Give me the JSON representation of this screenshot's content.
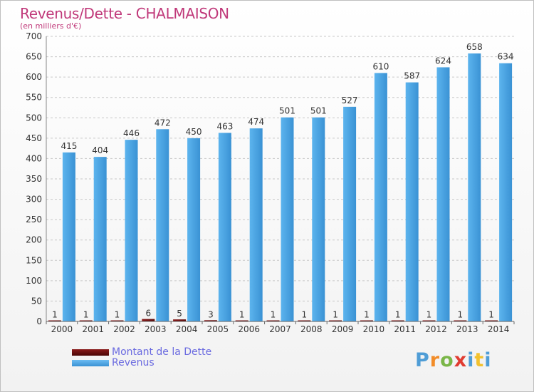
{
  "title": "Revenus/Dette - CHALMAISON",
  "subtitle": "(en milliers d'€)",
  "logo": {
    "text": "Proxiti",
    "letter_colors": [
      "#4f9dd6",
      "#f28c28",
      "#7ab648",
      "#e03c31",
      "#4f9dd6",
      "#f2c12e",
      "#4f9dd6"
    ]
  },
  "chart_data": {
    "type": "bar",
    "categories": [
      "2000",
      "2001",
      "2002",
      "2003",
      "2004",
      "2005",
      "2006",
      "2007",
      "2008",
      "2009",
      "2010",
      "2011",
      "2012",
      "2013",
      "2014"
    ],
    "series": [
      {
        "name": "Montant de la Dette",
        "color": "#6b0f0f",
        "values": [
          1,
          1,
          1,
          6,
          5,
          3,
          1,
          1,
          1,
          1,
          1,
          1,
          1,
          1,
          1
        ],
        "labels": [
          "1",
          "1",
          "1",
          "6",
          "5",
          "3",
          "1",
          "1",
          "1",
          "1",
          "1",
          "1",
          "1",
          "1",
          "1"
        ]
      },
      {
        "name": "Revenus",
        "color": "#4aa3e2",
        "values": [
          415,
          404,
          446,
          472,
          450,
          463,
          474,
          501,
          501,
          527,
          610,
          587,
          624,
          658,
          634
        ],
        "labels": [
          "415",
          "404",
          "446",
          "472",
          "450",
          "463",
          "474",
          "501",
          "501",
          "527",
          "610",
          "587",
          "624",
          "658",
          "634"
        ]
      }
    ],
    "ylim": [
      0,
      700
    ],
    "yticks": [
      "0",
      "50",
      "100",
      "150",
      "200",
      "250",
      "300",
      "350",
      "400",
      "450",
      "500",
      "550",
      "600",
      "650",
      "700"
    ],
    "grid": true,
    "legend_position": "bottom-left"
  }
}
